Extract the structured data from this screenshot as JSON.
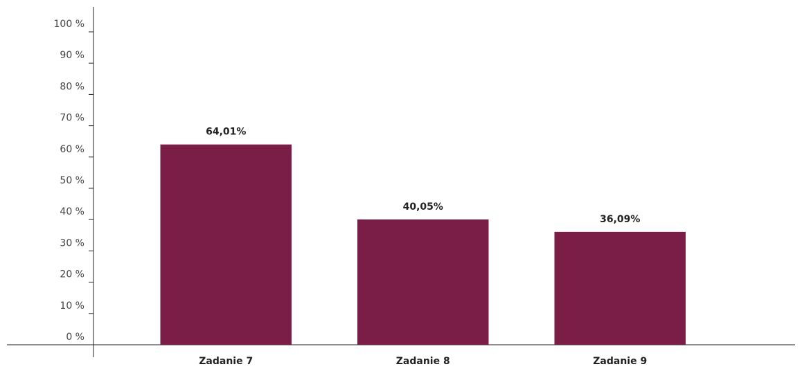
{
  "chart_data": {
    "type": "bar",
    "categories": [
      "Zadanie 7",
      "Zadanie 8",
      "Zadanie 9"
    ],
    "values": [
      64.01,
      40.05,
      36.09
    ],
    "value_labels": [
      "64,01%",
      "40,05%",
      "36,09%"
    ],
    "color": "#7b1e47",
    "ylim": [
      0,
      100
    ],
    "yticks": [
      {
        "value": 0,
        "label": "0 %"
      },
      {
        "value": 10,
        "label": "10 %"
      },
      {
        "value": 20,
        "label": "20 %"
      },
      {
        "value": 30,
        "label": "30 %"
      },
      {
        "value": 40,
        "label": "40 %"
      },
      {
        "value": 50,
        "label": "50 %"
      },
      {
        "value": 60,
        "label": "60 %"
      },
      {
        "value": 70,
        "label": "70 %"
      },
      {
        "value": 80,
        "label": "80 %"
      },
      {
        "value": 90,
        "label": "90 %"
      },
      {
        "value": 100,
        "label": "100 %"
      }
    ],
    "grid": false
  }
}
